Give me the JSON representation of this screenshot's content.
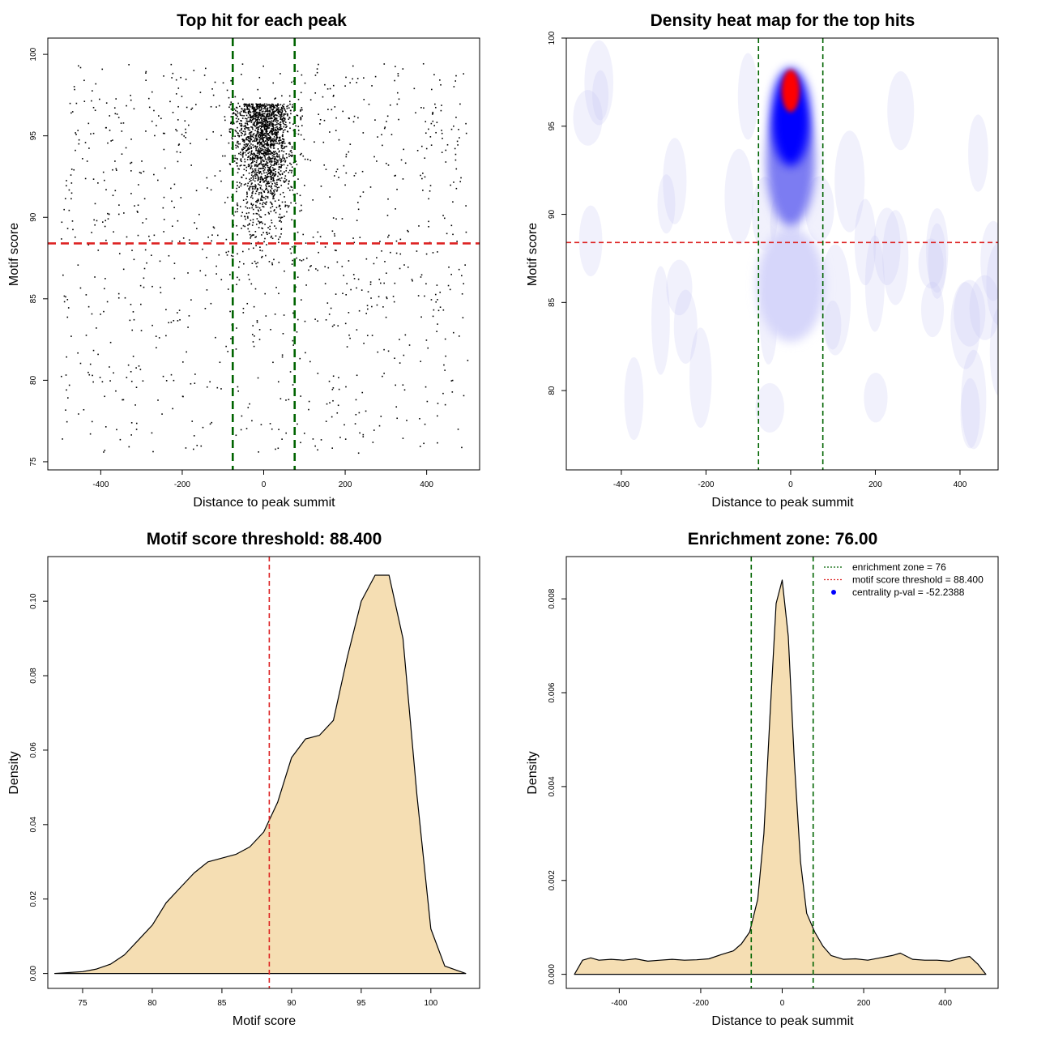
{
  "colors": {
    "threshold": "#dd2222",
    "zone": "#006400",
    "fill": "#f5deb3",
    "points": "#000000",
    "pval_marker": "#0000ff"
  },
  "chart_data": [
    {
      "type": "scatter",
      "title": "Top hit for each peak",
      "xlabel": "Distance to peak summit",
      "ylabel": "Motif score",
      "xlim": [
        -530,
        530
      ],
      "ylim": [
        74.5,
        101
      ],
      "xticks": [
        -400,
        -200,
        0,
        200,
        400
      ],
      "yticks": [
        75,
        80,
        85,
        90,
        95,
        100
      ],
      "hlines": [
        88.4
      ],
      "vlines": [
        -76,
        76
      ],
      "point_distribution": {
        "background": {
          "n": 1000,
          "x_range": [
            -500,
            500
          ],
          "y_range": [
            75.5,
            99.5
          ]
        },
        "central_cluster": {
          "n": 1800,
          "x_center": 0,
          "x_spread": 35,
          "y_mode": 97,
          "y_range": [
            80,
            100
          ]
        }
      }
    },
    {
      "type": "heatmap",
      "title": "Density heat map for the top hits",
      "xlabel": "Distance to peak summit",
      "ylabel": "Motif score",
      "xlim": [
        -530,
        490
      ],
      "ylim": [
        75.5,
        100
      ],
      "xticks": [
        -400,
        -200,
        0,
        200,
        400
      ],
      "yticks": [
        80,
        85,
        90,
        95,
        100
      ],
      "hlines": [
        88.4
      ],
      "vlines": [
        -76,
        76
      ],
      "peak": {
        "x": 0,
        "y": 97
      },
      "color_scale": [
        "#ffffff",
        "#0000ff",
        "#ff0000"
      ]
    },
    {
      "type": "area",
      "title": "Motif score threshold: 88.400",
      "xlabel": "Motif score",
      "ylabel": "Density",
      "xlim": [
        72.5,
        103.5
      ],
      "ylim": [
        -0.004,
        0.112
      ],
      "xticks": [
        75,
        80,
        85,
        90,
        95,
        100
      ],
      "yticks": [
        0.0,
        0.02,
        0.04,
        0.06,
        0.08,
        0.1
      ],
      "ytick_labels": [
        "0.00",
        "0.02",
        "0.04",
        "0.06",
        "0.08",
        "0.10"
      ],
      "vlines": [
        88.4
      ],
      "x": [
        73,
        75,
        76,
        77,
        78,
        79,
        80,
        81,
        82,
        83,
        84,
        85,
        86,
        87,
        88,
        89,
        90,
        91,
        92,
        93,
        94,
        95,
        96,
        97,
        98,
        99,
        100,
        101,
        102.5
      ],
      "y": [
        0.0,
        0.0005,
        0.0012,
        0.0025,
        0.005,
        0.009,
        0.013,
        0.019,
        0.023,
        0.027,
        0.03,
        0.031,
        0.032,
        0.034,
        0.038,
        0.046,
        0.058,
        0.063,
        0.064,
        0.068,
        0.085,
        0.1,
        0.107,
        0.107,
        0.09,
        0.048,
        0.012,
        0.002,
        0.0
      ]
    },
    {
      "type": "area",
      "title": "Enrichment zone: 76.00",
      "xlabel": "Distance to peak summit",
      "ylabel": "Density",
      "xlim": [
        -530,
        530
      ],
      "ylim": [
        -0.0003,
        0.0089
      ],
      "xticks": [
        -400,
        -200,
        0,
        200,
        400
      ],
      "yticks": [
        0.0,
        0.002,
        0.004,
        0.006,
        0.008
      ],
      "ytick_labels": [
        "0.000",
        "0.002",
        "0.004",
        "0.006",
        "0.008"
      ],
      "vlines": [
        -76,
        76
      ],
      "x": [
        -510,
        -490,
        -470,
        -450,
        -420,
        -390,
        -360,
        -330,
        -300,
        -270,
        -240,
        -210,
        -180,
        -150,
        -120,
        -100,
        -80,
        -60,
        -45,
        -30,
        -15,
        0,
        15,
        30,
        45,
        60,
        80,
        100,
        120,
        150,
        180,
        210,
        240,
        270,
        290,
        320,
        350,
        380,
        410,
        440,
        460,
        480,
        500
      ],
      "y": [
        0.0,
        0.0003,
        0.00035,
        0.0003,
        0.00032,
        0.0003,
        0.00033,
        0.00028,
        0.0003,
        0.00032,
        0.0003,
        0.00031,
        0.00033,
        0.00042,
        0.0005,
        0.00065,
        0.0009,
        0.0016,
        0.003,
        0.0055,
        0.0079,
        0.0084,
        0.0072,
        0.0045,
        0.0024,
        0.0013,
        0.0009,
        0.0006,
        0.0004,
        0.00032,
        0.00033,
        0.0003,
        0.00035,
        0.0004,
        0.00045,
        0.00032,
        0.0003,
        0.0003,
        0.00028,
        0.00035,
        0.00038,
        0.00022,
        0.0
      ],
      "legend": [
        {
          "label": "enrichment zone = 76",
          "style": "dotted-line",
          "color": "#006400"
        },
        {
          "label": "motif score threshold = 88.400",
          "style": "dotted-line",
          "color": "#dd2222"
        },
        {
          "label": "centrality p-val = -52.2388",
          "style": "dot",
          "color": "#0000ff"
        }
      ],
      "legend_position": "top-right"
    }
  ]
}
